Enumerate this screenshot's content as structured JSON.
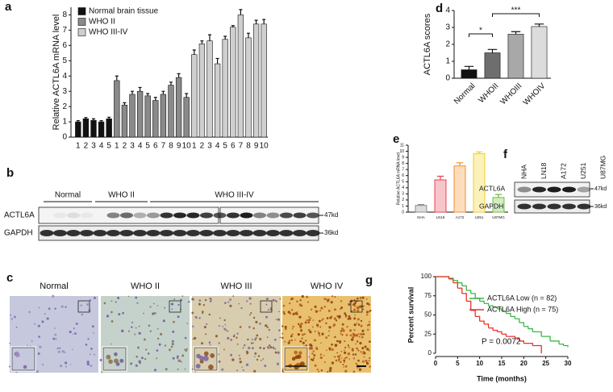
{
  "panel_labels": [
    "a",
    "b",
    "c",
    "d",
    "e",
    "f",
    "g"
  ],
  "chart_data": [
    {
      "type": "bar",
      "y_label": "Relative ACTL6A mRNA  level",
      "categories": [
        "1",
        "2",
        "3",
        "4",
        "5",
        "1",
        "2",
        "3",
        "4",
        "5",
        "6",
        "7",
        "8",
        "9",
        "10",
        "1",
        "2",
        "3",
        "4",
        "5",
        "6",
        "7",
        "8",
        "9",
        "10"
      ],
      "series": [
        {
          "name": "Normal brain tissue",
          "color": "#111111",
          "values": [
            1.0,
            1.2,
            1.1,
            1.0,
            1.2,
            null,
            null,
            null,
            null,
            null,
            null,
            null,
            null,
            null,
            null,
            null,
            null,
            null,
            null,
            null,
            null,
            null,
            null,
            null,
            null
          ],
          "errors": [
            0.08,
            0.08,
            0.1,
            0.08,
            0.1,
            null,
            null,
            null,
            null,
            null,
            null,
            null,
            null,
            null,
            null,
            null,
            null,
            null,
            null,
            null,
            null,
            null,
            null,
            null,
            null
          ]
        },
        {
          "name": "WHO II",
          "color": "#8a8a8a",
          "values": [
            null,
            null,
            null,
            null,
            null,
            3.7,
            2.1,
            2.8,
            3.0,
            2.7,
            2.4,
            2.8,
            3.4,
            3.9,
            2.6,
            null,
            null,
            null,
            null,
            null,
            null,
            null,
            null,
            null,
            null
          ],
          "errors": [
            null,
            null,
            null,
            null,
            null,
            0.3,
            0.15,
            0.2,
            0.25,
            0.15,
            0.2,
            0.2,
            0.2,
            0.25,
            0.25,
            null,
            null,
            null,
            null,
            null,
            null,
            null,
            null,
            null,
            null
          ]
        },
        {
          "name": "WHO III-IV",
          "color": "#cfcfcf",
          "values": [
            null,
            null,
            null,
            null,
            null,
            null,
            null,
            null,
            null,
            null,
            null,
            null,
            null,
            null,
            null,
            5.4,
            6.1,
            6.3,
            4.8,
            6.4,
            7.2,
            8.0,
            6.5,
            7.4,
            7.4
          ],
          "errors": [
            null,
            null,
            null,
            null,
            null,
            null,
            null,
            null,
            null,
            null,
            null,
            null,
            null,
            null,
            null,
            0.3,
            0.2,
            0.4,
            0.35,
            0.2,
            0.1,
            0.35,
            0.3,
            0.25,
            0.3
          ]
        }
      ],
      "ylim": [
        0,
        8.5
      ],
      "yticks": [
        0,
        1,
        2,
        3,
        4,
        5,
        6,
        7,
        8
      ]
    },
    {
      "type": "bar",
      "y_label": "ACTL6A scores",
      "categories": [
        "Normal",
        "WHOII",
        "WHOIII",
        "WHOIV"
      ],
      "values": [
        0.5,
        1.5,
        2.6,
        3.05
      ],
      "errors": [
        0.2,
        0.2,
        0.15,
        0.15
      ],
      "colors": [
        "#111111",
        "#6e6e6e",
        "#a8a8a8",
        "#dcdcdc"
      ],
      "annotations": [
        "*",
        "***"
      ],
      "ylim": [
        0,
        4
      ],
      "yticks": [
        0,
        1,
        2,
        3,
        4
      ]
    },
    {
      "type": "bar",
      "y_label": "Relative ACTL6A mRNA  level",
      "categories": [
        "NHA",
        "LN18",
        "A172",
        "U251",
        "U87MG"
      ],
      "values": [
        1.1,
        5.3,
        7.6,
        9.6,
        2.4
      ],
      "errors": [
        0.15,
        0.6,
        0.5,
        0.3,
        0.5
      ],
      "colors": [
        "#8c8c8c",
        "#e8414f",
        "#f5922b",
        "#f2cf1d",
        "#6cbf3a"
      ],
      "ylim": [
        0,
        11
      ],
      "yticks": [
        0,
        1,
        2,
        3,
        4,
        5,
        6,
        7,
        8,
        9,
        10,
        11
      ]
    },
    {
      "type": "line",
      "x_label": "Time (months)",
      "y_label": "Percent survival",
      "annotation": "P = 0.0072",
      "series": [
        {
          "name": "ACTL6A Low (n = 82)",
          "color": "#3bb54a",
          "x": [
            0,
            3,
            4,
            5,
            6,
            7,
            8,
            9,
            10,
            11,
            12,
            13,
            14,
            15,
            16,
            17,
            18,
            19,
            20,
            21,
            22,
            24,
            26,
            28,
            29,
            30
          ],
          "values": [
            100,
            98,
            95,
            92,
            88,
            82,
            78,
            72,
            68,
            65,
            62,
            60,
            58,
            55,
            52,
            48,
            45,
            40,
            35,
            32,
            28,
            22,
            16,
            12,
            10,
            8
          ]
        },
        {
          "name": "ACTL6A High (n = 75)",
          "color": "#e8322c",
          "x": [
            0,
            3,
            4,
            5,
            6,
            7,
            8,
            9,
            10,
            11,
            12,
            13,
            14,
            15,
            16,
            18,
            19,
            20,
            22,
            24
          ],
          "values": [
            100,
            97,
            92,
            85,
            78,
            68,
            56,
            48,
            42,
            38,
            33,
            30,
            28,
            25,
            22,
            20,
            16,
            13,
            10,
            0
          ]
        }
      ],
      "xlim": [
        0,
        30
      ],
      "xticks": [
        0,
        5,
        10,
        15,
        20,
        25,
        30
      ],
      "ylim": [
        0,
        100
      ],
      "yticks": [
        0,
        25,
        50,
        75,
        100
      ]
    }
  ],
  "blot_b": {
    "groups": [
      "Normal",
      "WHO II",
      "WHO III-IV"
    ],
    "rows": [
      "ACTL6A",
      "GAPDH"
    ],
    "markers": [
      "47kd",
      "36kd"
    ]
  },
  "histology_c": {
    "titles": [
      "Normal",
      "WHO II",
      "WHO III",
      "WHO IV"
    ]
  },
  "blot_f": {
    "lanes": [
      "NHA",
      "LN18",
      "A172",
      "U251",
      "U87MG"
    ],
    "rows": [
      "ACTL6A",
      "GAPDH"
    ],
    "markers": [
      "47kd",
      "36kd"
    ]
  }
}
